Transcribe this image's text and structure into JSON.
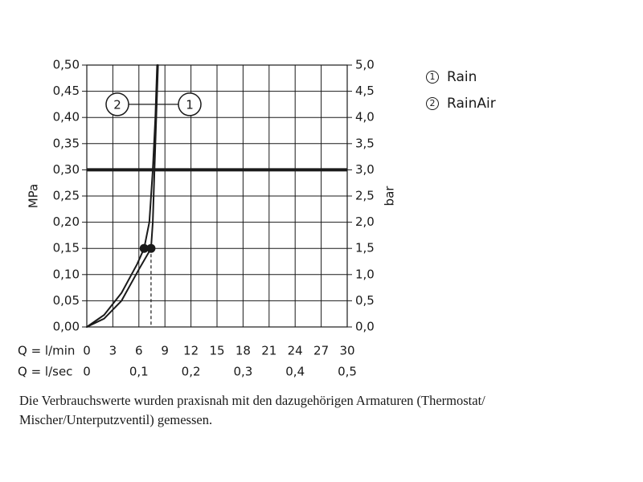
{
  "chart_data": {
    "type": "line",
    "ylabel_left": "MPa",
    "ylabel_right": "bar",
    "ylim": [
      0,
      0.5
    ],
    "xlim": [
      0,
      30
    ],
    "y_ticks_left": [
      "0,00",
      "0,05",
      "0,10",
      "0,15",
      "0,20",
      "0,25",
      "0,30",
      "0,35",
      "0,40",
      "0,45",
      "0,50"
    ],
    "y_ticks_right": [
      "0,0",
      "0,5",
      "1,0",
      "1,5",
      "2,0",
      "2,5",
      "3,0",
      "3,5",
      "4,0",
      "4,5",
      "5,0"
    ],
    "x_label_lmin": "Q = l/min",
    "x_ticks_lmin": [
      "0",
      "3",
      "6",
      "9",
      "12",
      "15",
      "18",
      "21",
      "24",
      "27",
      "30"
    ],
    "x_label_lsec": "Q = l/sec",
    "x_ticks_lsec": [
      "0",
      "0,1",
      "0,2",
      "0,3",
      "0,4",
      "0,5"
    ],
    "reference_line_y": 0.3,
    "series": [
      {
        "name": "Rain",
        "marker": "1",
        "points": [
          [
            0,
            0
          ],
          [
            2,
            0.016
          ],
          [
            4,
            0.05
          ],
          [
            6,
            0.11
          ],
          [
            7.4,
            0.15
          ],
          [
            7.6,
            0.2
          ],
          [
            7.8,
            0.3
          ],
          [
            8.0,
            0.4
          ],
          [
            8.2,
            0.5
          ]
        ],
        "operating_point": [
          7.4,
          0.15
        ]
      },
      {
        "name": "RainAir",
        "marker": "2",
        "points": [
          [
            0,
            0
          ],
          [
            2,
            0.023
          ],
          [
            4,
            0.065
          ],
          [
            5.8,
            0.12
          ],
          [
            6.6,
            0.15
          ],
          [
            7.2,
            0.2
          ],
          [
            7.6,
            0.3
          ],
          [
            7.9,
            0.4
          ],
          [
            8.1,
            0.5
          ]
        ],
        "operating_point": [
          6.6,
          0.15
        ]
      }
    ],
    "dashed_drop_x": 7.4,
    "grid": true
  },
  "legend": [
    {
      "num": "1",
      "label": "Rain"
    },
    {
      "num": "2",
      "label": "RainAir"
    }
  ],
  "note": "Die Verbrauchswerte wurden praxisnah mit den dazugehörigen Armaturen (Thermostat/ Mischer/Unterputzventil) gemessen."
}
